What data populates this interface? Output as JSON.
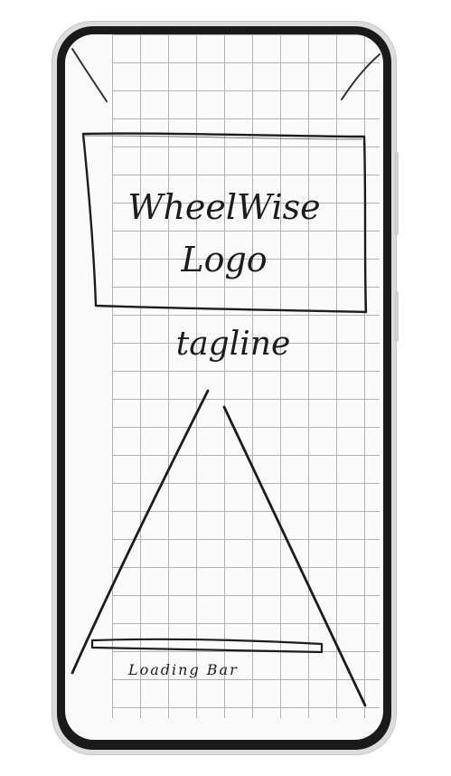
{
  "app": {
    "name": "WheelWise"
  },
  "splash": {
    "logo_line1": "WheelWise",
    "logo_line2": "Logo",
    "tagline": "tagline",
    "loading_label": "Loading Bar"
  },
  "colors": {
    "ink": "#1c1c1c",
    "paper": "#fafafa",
    "grid": "#9a9a9a",
    "device_frame": "#1a1a1a"
  }
}
